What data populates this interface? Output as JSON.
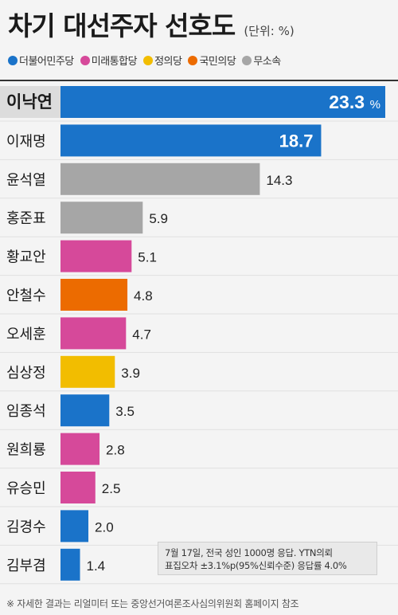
{
  "header": {
    "title": "차기 대선주자 선호도",
    "unit": "(단위: %)"
  },
  "legend": [
    {
      "label": "더불어민주당",
      "color": "#1a73c9"
    },
    {
      "label": "미래통합당",
      "color": "#d6499a"
    },
    {
      "label": "정의당",
      "color": "#f2bd00"
    },
    {
      "label": "국민의당",
      "color": "#ec6b00"
    },
    {
      "label": "무소속",
      "color": "#a6a6a6"
    }
  ],
  "chart_data": {
    "type": "bar",
    "orientation": "horizontal",
    "unit": "%",
    "categories": [
      "이낙연",
      "이재명",
      "윤석열",
      "홍준표",
      "황교안",
      "안철수",
      "오세훈",
      "심상정",
      "임종석",
      "원희룡",
      "유승민",
      "김경수",
      "김부겸"
    ],
    "values": [
      23.3,
      18.7,
      14.3,
      5.9,
      5.1,
      4.8,
      4.7,
      3.9,
      3.5,
      2.8,
      2.5,
      2.0,
      1.4
    ],
    "value_labels": [
      "23.3",
      "18.7",
      "14.3",
      "5.9",
      "5.1",
      "4.8",
      "4.7",
      "3.9",
      "3.5",
      "2.8",
      "2.5",
      "2.0",
      "1.4"
    ],
    "top_unit_label": "%",
    "parties": [
      "더불어민주당",
      "더불어민주당",
      "무소속",
      "무소속",
      "미래통합당",
      "국민의당",
      "미래통합당",
      "정의당",
      "더불어민주당",
      "미래통합당",
      "미래통합당",
      "더불어민주당",
      "더불어민주당"
    ]
  },
  "note": {
    "line1": "7월 17일, 전국 성인 1000명 응답. YTN의뢰",
    "line2": "표집오차 ±3.1%p(95%신뢰수준) 응답률 4.0%"
  },
  "footnote": "※ 자세한 결과는 리얼미터 또는 중앙선거여론조사심의위원회 홈페이지 참조"
}
